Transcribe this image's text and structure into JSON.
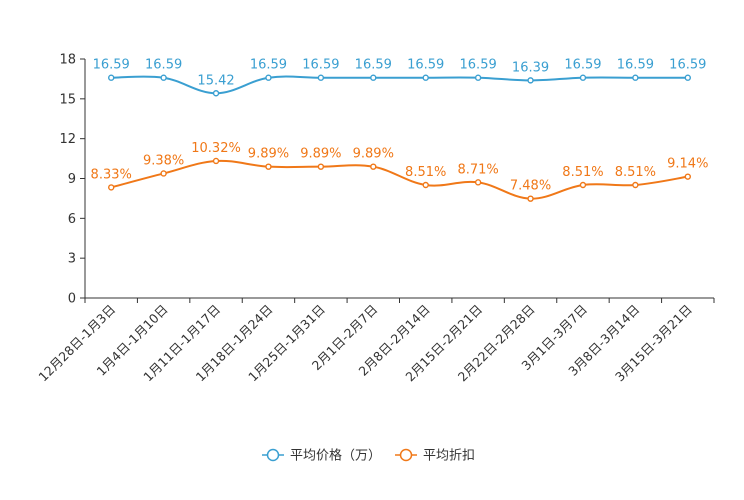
{
  "chart_data": {
    "type": "line",
    "title": "",
    "xlabel": "",
    "ylabel": "",
    "ylim": [
      0,
      18
    ],
    "yticks": [
      0,
      3,
      6,
      9,
      12,
      15,
      18
    ],
    "categories": [
      "12月28日-1月3日",
      "1月4日-1月10日",
      "1月11日-1月17日",
      "1月18日-1月24日",
      "1月25日-1月31日",
      "2月1日-2月7日",
      "2月8日-2月14日",
      "2月15日-2月21日",
      "2月22日-2月28日",
      "3月1日-3月7日",
      "3月8日-3月14日",
      "3月15日-3月21日"
    ],
    "series": [
      {
        "name": "平均价格（万）",
        "color": "#3a9fd1",
        "values": [
          16.59,
          16.59,
          15.42,
          16.59,
          16.59,
          16.59,
          16.59,
          16.59,
          16.39,
          16.59,
          16.59,
          16.59
        ],
        "labels": [
          "16.59",
          "16.59",
          "15.42",
          "16.59",
          "16.59",
          "16.59",
          "16.59",
          "16.59",
          "16.39",
          "16.59",
          "16.59",
          "16.59"
        ]
      },
      {
        "name": "平均折扣",
        "color": "#f07818",
        "values": [
          8.33,
          9.38,
          10.32,
          9.89,
          9.89,
          9.89,
          8.51,
          8.71,
          7.48,
          8.51,
          8.51,
          9.14
        ],
        "labels": [
          "8.33%",
          "9.38%",
          "10.32%",
          "9.89%",
          "9.89%",
          "9.89%",
          "8.51%",
          "8.71%",
          "7.48%",
          "8.51%",
          "8.51%",
          "9.14%"
        ]
      }
    ],
    "legend": "bottom-center",
    "grid": false
  }
}
